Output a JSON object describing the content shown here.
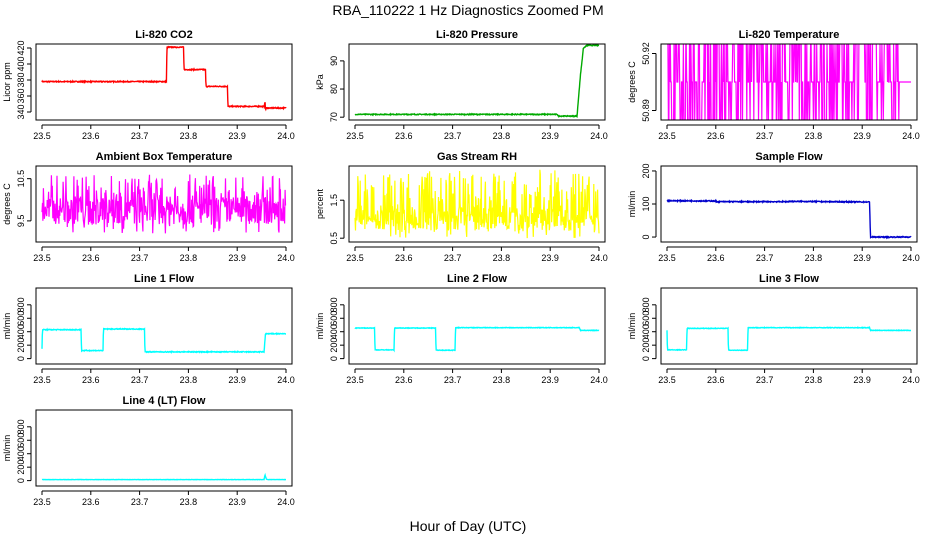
{
  "page": {
    "title": "RBA_110222  1 Hz Diagnostics Zoomed PM",
    "xlabel": "Hour of Day (UTC)"
  },
  "chart_data": [
    {
      "type": "line",
      "title": "Li-820 CO2",
      "xlabel": "",
      "ylabel": "Licor ppm",
      "color": "#ff0000",
      "xlim": [
        23.5,
        24.0
      ],
      "ylim": [
        330,
        425
      ],
      "xticks": [
        23.5,
        23.6,
        23.7,
        23.8,
        23.9,
        24.0
      ],
      "xtick_labels": [
        "23.5",
        "23.6",
        "23.7",
        "23.8",
        "23.9",
        "24.0"
      ],
      "yticks": [
        340,
        360,
        380,
        400,
        420
      ],
      "ytick_labels": [
        "340",
        "360",
        "380",
        "400",
        "420"
      ],
      "noise": 0.6,
      "series": [
        {
          "x": [
            23.5,
            23.755,
            23.756,
            23.79,
            23.791,
            23.835,
            23.836,
            23.88,
            23.881,
            23.955,
            23.957,
            23.958,
            23.96,
            24.0
          ],
          "y": [
            378,
            378,
            421,
            421,
            393,
            393,
            372,
            372,
            347,
            347,
            353,
            343,
            345,
            345
          ]
        }
      ]
    },
    {
      "type": "line",
      "title": "Li-820 Pressure",
      "xlabel": "",
      "ylabel": "kPa",
      "color": "#00aa00",
      "xlim": [
        23.5,
        24.0
      ],
      "ylim": [
        69,
        96
      ],
      "xticks": [
        23.5,
        23.6,
        23.7,
        23.8,
        23.9,
        24.0
      ],
      "xtick_labels": [
        "23.5",
        "23.6",
        "23.7",
        "23.8",
        "23.9",
        "24.0"
      ],
      "yticks": [
        70,
        80,
        90
      ],
      "ytick_labels": [
        "70",
        "80",
        "90"
      ],
      "noise": 0.15,
      "series": [
        {
          "x": [
            23.5,
            23.915,
            23.916,
            23.955,
            23.962,
            23.968,
            23.975,
            24.0
          ],
          "y": [
            71,
            71,
            70.4,
            70.4,
            85,
            94.5,
            95.5,
            95.5
          ]
        }
      ]
    },
    {
      "type": "line",
      "title": "Li-820 Temperature",
      "xlabel": "",
      "ylabel": "degrees C",
      "color": "#ff00ff",
      "xlim": [
        23.5,
        24.0
      ],
      "ylim": [
        50.885,
        50.925
      ],
      "xticks": [
        23.5,
        23.6,
        23.7,
        23.8,
        23.9,
        24.0
      ],
      "xtick_labels": [
        "23.5",
        "23.6",
        "23.7",
        "23.8",
        "23.9",
        "24.0"
      ],
      "yticks": [
        50.89,
        50.92
      ],
      "ytick_labels": [
        "50.89",
        "50.92"
      ],
      "levels": [
        50.885,
        50.905,
        50.925
      ],
      "series": [
        {
          "name": "",
          "values": []
        }
      ]
    },
    {
      "type": "line",
      "title": "Ambient Box Temperature",
      "xlabel": "",
      "ylabel": "degrees C",
      "color": "#ff00ff",
      "xlim": [
        23.5,
        24.0
      ],
      "ylim": [
        9.0,
        10.8
      ],
      "xticks": [
        23.5,
        23.6,
        23.7,
        23.8,
        23.9,
        24.0
      ],
      "xtick_labels": [
        "23.5",
        "23.6",
        "23.7",
        "23.8",
        "23.9",
        "24.0"
      ],
      "yticks": [
        9.5,
        10.5
      ],
      "ytick_labels": [
        "9.5",
        "10.5"
      ],
      "noise_band": [
        9.2,
        10.6
      ],
      "center": 9.75,
      "series": [
        {
          "x": [
            23.5,
            24.0
          ],
          "y": [
            9.75,
            9.75
          ]
        }
      ]
    },
    {
      "type": "line",
      "title": "Gas Stream RH",
      "xlabel": "",
      "ylabel": "percent",
      "color": "#ffff00",
      "xlim": [
        23.5,
        24.0
      ],
      "ylim": [
        0.4,
        2.4
      ],
      "xticks": [
        23.5,
        23.6,
        23.7,
        23.8,
        23.9,
        24.0
      ],
      "xtick_labels": [
        "23.5",
        "23.6",
        "23.7",
        "23.8",
        "23.9",
        "24.0"
      ],
      "yticks": [
        0.5,
        1.5
      ],
      "ytick_labels": [
        "0.5",
        "1.5"
      ],
      "noise_band": [
        0.5,
        2.3
      ],
      "center": 1.0,
      "series": [
        {
          "x": [
            23.5,
            24.0
          ],
          "y": [
            1.0,
            1.0
          ]
        }
      ]
    },
    {
      "type": "line",
      "title": "Sample Flow",
      "xlabel": "",
      "ylabel": "ml/min",
      "color": "#0000cc",
      "xlim": [
        23.5,
        24.0
      ],
      "ylim": [
        -15,
        215
      ],
      "xticks": [
        23.5,
        23.6,
        23.7,
        23.8,
        23.9,
        24.0
      ],
      "xtick_labels": [
        "23.5",
        "23.6",
        "23.7",
        "23.8",
        "23.9",
        "24.0"
      ],
      "yticks": [
        0,
        100,
        200
      ],
      "ytick_labels": [
        "0",
        "100",
        "200"
      ],
      "noise": 1.5,
      "series": [
        {
          "x": [
            23.5,
            23.6,
            23.601,
            23.75,
            23.751,
            23.915,
            23.917,
            24.0
          ],
          "y": [
            110,
            109,
            107,
            107,
            108,
            106,
            0,
            0
          ]
        }
      ]
    },
    {
      "type": "line",
      "title": "Line 1 Flow",
      "xlabel": "",
      "ylabel": "ml/min",
      "color": "#00ffff",
      "xlim": [
        23.5,
        24.0
      ],
      "ylim": [
        -80,
        1050
      ],
      "xticks": [
        23.5,
        23.6,
        23.7,
        23.8,
        23.9,
        24.0
      ],
      "xtick_labels": [
        "23.5",
        "23.6",
        "23.7",
        "23.8",
        "23.9",
        "24.0"
      ],
      "yticks": [
        0,
        200,
        400,
        600,
        800
      ],
      "ytick_labels": [
        "0",
        "200",
        "400",
        "600",
        "800"
      ],
      "noise": 6,
      "series": [
        {
          "x": [
            23.5,
            23.501,
            23.58,
            23.581,
            23.625,
            23.626,
            23.71,
            23.711,
            23.955,
            23.958,
            24.0
          ],
          "y": [
            150,
            430,
            430,
            120,
            120,
            440,
            440,
            100,
            100,
            370,
            370
          ]
        }
      ]
    },
    {
      "type": "line",
      "title": "Line 2 Flow",
      "xlabel": "",
      "ylabel": "ml/min",
      "color": "#00ffff",
      "xlim": [
        23.5,
        24.0
      ],
      "ylim": [
        -80,
        1050
      ],
      "xticks": [
        23.5,
        23.6,
        23.7,
        23.8,
        23.9,
        24.0
      ],
      "xtick_labels": [
        "23.5",
        "23.6",
        "23.7",
        "23.8",
        "23.9",
        "24.0"
      ],
      "yticks": [
        0,
        200,
        400,
        600,
        800
      ],
      "ytick_labels": [
        "0",
        "200",
        "400",
        "600",
        "800"
      ],
      "noise": 4,
      "series": [
        {
          "x": [
            23.5,
            23.54,
            23.541,
            23.58,
            23.581,
            23.665,
            23.666,
            23.705,
            23.706,
            23.96,
            23.962,
            24.0
          ],
          "y": [
            455,
            455,
            130,
            130,
            455,
            455,
            125,
            125,
            460,
            460,
            420,
            420
          ]
        }
      ]
    },
    {
      "type": "line",
      "title": "Line 3 Flow",
      "xlabel": "",
      "ylabel": "ml/min",
      "color": "#00ffff",
      "xlim": [
        23.5,
        24.0
      ],
      "ylim": [
        -80,
        1050
      ],
      "xticks": [
        23.5,
        23.6,
        23.7,
        23.8,
        23.9,
        24.0
      ],
      "xtick_labels": [
        "23.5",
        "23.6",
        "23.7",
        "23.8",
        "23.9",
        "24.0"
      ],
      "yticks": [
        0,
        200,
        400,
        600,
        800
      ],
      "ytick_labels": [
        "0",
        "200",
        "400",
        "600",
        "800"
      ],
      "noise": 4,
      "series": [
        {
          "x": [
            23.5,
            23.501,
            23.54,
            23.541,
            23.625,
            23.626,
            23.665,
            23.666,
            23.915,
            23.917,
            24.0
          ],
          "y": [
            420,
            130,
            130,
            450,
            450,
            125,
            125,
            460,
            460,
            420,
            420
          ]
        }
      ]
    },
    {
      "type": "line",
      "title": "Line 4 (LT) Flow",
      "xlabel": "",
      "ylabel": "ml/min",
      "color": "#00ffff",
      "xlim": [
        23.5,
        24.0
      ],
      "ylim": [
        -80,
        1050
      ],
      "xticks": [
        23.5,
        23.6,
        23.7,
        23.8,
        23.9,
        24.0
      ],
      "xtick_labels": [
        "23.5",
        "23.6",
        "23.7",
        "23.8",
        "23.9",
        "24.0"
      ],
      "yticks": [
        0,
        200,
        400,
        600,
        800
      ],
      "ytick_labels": [
        "0",
        "200",
        "400",
        "600",
        "800"
      ],
      "noise": 2,
      "series": [
        {
          "x": [
            23.5,
            23.955,
            23.957,
            23.96,
            23.963,
            24.0
          ],
          "y": [
            15,
            15,
            85,
            20,
            15,
            15
          ]
        }
      ]
    }
  ]
}
